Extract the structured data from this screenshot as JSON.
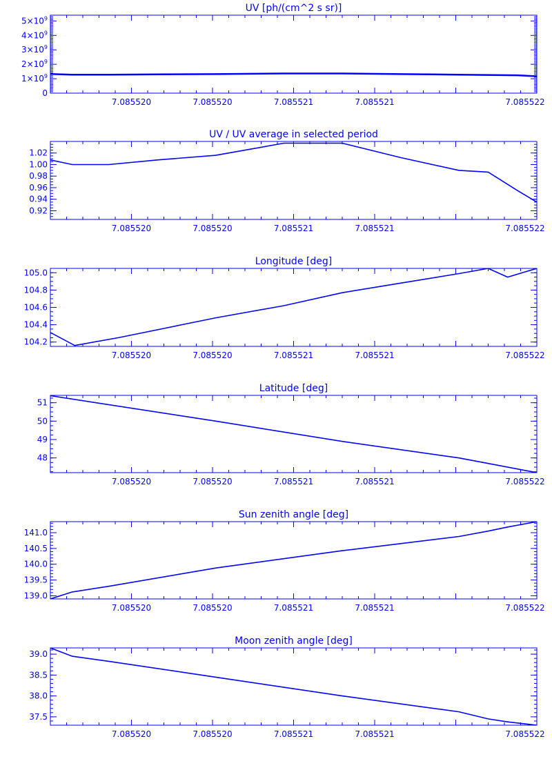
{
  "color": "#0000ff",
  "x_tick_labels": [
    "7.085520",
    "7.085520",
    "7.085521",
    "7.085521",
    "7.085522"
  ],
  "chart_data": [
    {
      "type": "line",
      "title": "UV [ph/(cm^2 s sr)]",
      "xlabel": "",
      "ylabel": "",
      "ylim": [
        0,
        5400000000.0
      ],
      "yticks": [
        {
          "v": 0,
          "mant": "0",
          "exp": ""
        },
        {
          "v": 1000000000.0,
          "mant": "1×10",
          "exp": "9"
        },
        {
          "v": 2000000000.0,
          "mant": "2×10",
          "exp": "9"
        },
        {
          "v": 3000000000.0,
          "mant": "3×10",
          "exp": "9"
        },
        {
          "v": 4000000000.0,
          "mant": "4×10",
          "exp": "9"
        },
        {
          "v": 5000000000.0,
          "mant": "5×10",
          "exp": "9"
        }
      ],
      "minor_per_major": 10,
      "x": [
        0,
        0.045,
        0.12,
        0.22,
        0.34,
        0.48,
        0.6,
        0.72,
        0.84,
        0.96,
        1.0
      ],
      "y": [
        1330000000.0,
        1280000000.0,
        1280000000.0,
        1300000000.0,
        1320000000.0,
        1360000000.0,
        1360000000.0,
        1320000000.0,
        1280000000.0,
        1240000000.0,
        1170000000.0
      ]
    },
    {
      "type": "line",
      "title": "UV / UV average in selected period",
      "xlabel": "",
      "ylabel": "",
      "ylim": [
        0.905,
        1.04
      ],
      "yticks": [
        {
          "v": 0.92,
          "mant": "0.92",
          "exp": ""
        },
        {
          "v": 0.94,
          "mant": "0.94",
          "exp": ""
        },
        {
          "v": 0.96,
          "mant": "0.96",
          "exp": ""
        },
        {
          "v": 0.98,
          "mant": "0.98",
          "exp": ""
        },
        {
          "v": 1.0,
          "mant": "1.00",
          "exp": ""
        },
        {
          "v": 1.02,
          "mant": "1.02",
          "exp": ""
        }
      ],
      "minor_per_major": 4,
      "x": [
        0,
        0.045,
        0.12,
        0.22,
        0.34,
        0.4,
        0.48,
        0.6,
        0.72,
        0.84,
        0.9,
        0.96,
        1.0
      ],
      "y": [
        1.008,
        1.0,
        1.0,
        1.008,
        1.016,
        1.025,
        1.037,
        1.037,
        1.012,
        0.99,
        0.987,
        0.955,
        0.935
      ]
    },
    {
      "type": "line",
      "title": "Longitude [deg]",
      "xlabel": "",
      "ylabel": "",
      "ylim": [
        104.15,
        105.05
      ],
      "yticks": [
        {
          "v": 104.2,
          "mant": "104.2",
          "exp": ""
        },
        {
          "v": 104.4,
          "mant": "104.4",
          "exp": ""
        },
        {
          "v": 104.6,
          "mant": "104.6",
          "exp": ""
        },
        {
          "v": 104.8,
          "mant": "104.8",
          "exp": ""
        },
        {
          "v": 105.0,
          "mant": "105.0",
          "exp": ""
        }
      ],
      "minor_per_major": 4,
      "x": [
        0,
        0.05,
        0.14,
        0.34,
        0.48,
        0.6,
        0.72,
        0.84,
        0.9,
        0.94,
        1.0
      ],
      "y": [
        104.31,
        104.16,
        104.25,
        104.48,
        104.62,
        104.77,
        104.88,
        104.99,
        105.05,
        104.95,
        105.05
      ]
    },
    {
      "type": "line",
      "title": "Latitude [deg]",
      "xlabel": "",
      "ylabel": "",
      "ylim": [
        47.2,
        51.4
      ],
      "yticks": [
        {
          "v": 48,
          "mant": "48",
          "exp": ""
        },
        {
          "v": 49,
          "mant": "49",
          "exp": ""
        },
        {
          "v": 50,
          "mant": "50",
          "exp": ""
        },
        {
          "v": 51,
          "mant": "51",
          "exp": ""
        }
      ],
      "minor_per_major": 4,
      "x": [
        0,
        0.34,
        0.6,
        0.84,
        0.92,
        1.0
      ],
      "y": [
        51.38,
        50.0,
        48.9,
        48.0,
        47.6,
        47.2
      ]
    },
    {
      "type": "line",
      "title": "Sun zenith angle [deg]",
      "xlabel": "",
      "ylabel": "",
      "ylim": [
        138.9,
        141.35
      ],
      "yticks": [
        {
          "v": 139.0,
          "mant": "139.0",
          "exp": ""
        },
        {
          "v": 139.5,
          "mant": "139.5",
          "exp": ""
        },
        {
          "v": 140.0,
          "mant": "140.0",
          "exp": ""
        },
        {
          "v": 140.5,
          "mant": "140.5",
          "exp": ""
        },
        {
          "v": 141.0,
          "mant": "141.0",
          "exp": ""
        }
      ],
      "minor_per_major": 5,
      "x": [
        0,
        0.045,
        0.12,
        0.34,
        0.6,
        0.84,
        0.9,
        0.94,
        1.0
      ],
      "y": [
        138.9,
        139.12,
        139.3,
        139.88,
        140.43,
        140.88,
        141.05,
        141.18,
        141.35
      ]
    },
    {
      "type": "line",
      "title": "Moon zenith angle [deg]",
      "xlabel": "",
      "ylabel": "",
      "ylim": [
        37.3,
        39.15
      ],
      "yticks": [
        {
          "v": 37.5,
          "mant": "37.5",
          "exp": ""
        },
        {
          "v": 38.0,
          "mant": "38.0",
          "exp": ""
        },
        {
          "v": 38.5,
          "mant": "38.5",
          "exp": ""
        },
        {
          "v": 39.0,
          "mant": "39.0",
          "exp": ""
        }
      ],
      "minor_per_major": 5,
      "x": [
        0,
        0.045,
        0.12,
        0.34,
        0.6,
        0.84,
        0.9,
        0.94,
        1.0
      ],
      "y": [
        39.15,
        38.95,
        38.83,
        38.45,
        38.0,
        37.62,
        37.45,
        37.38,
        37.3
      ]
    }
  ]
}
